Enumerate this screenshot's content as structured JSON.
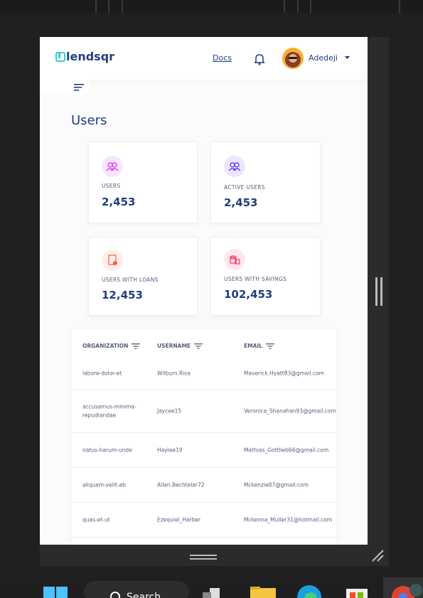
{
  "header": {
    "logo": "lendsqr",
    "docs": "Docs",
    "user": "Adedeji"
  },
  "page_title": "Users",
  "cards": [
    {
      "label": "USERS",
      "value": "2,453"
    },
    {
      "label": "ACTIVE USERS",
      "value": "2,453"
    },
    {
      "label": "USERS WITH LOANS",
      "value": "12,453"
    },
    {
      "label": "USERS WITH SAVINGS",
      "value": "102,453"
    }
  ],
  "table": {
    "columns": [
      "ORGANIZATION",
      "USERNAME",
      "EMAIL"
    ],
    "rows": [
      [
        "labore-dolor-et",
        "Wilburn.Rice",
        "Maverick.Hyatt83@gmail.com"
      ],
      [
        "accusamus-minima-repudiandae",
        "Jaycee15",
        "Veronica_Shanahan93@gmail.com"
      ],
      [
        "natus-harum-unde",
        "Haylee19",
        "Mathias_Gottlieb66@gmail.com"
      ],
      [
        "aliquam-velit-ab",
        "Allan.Bechtelar72",
        "Mckenzie87@gmail.com"
      ],
      [
        "quas-et-ut",
        "Ezequiel_Harber",
        "Mckenna_Muller31@hotmail.com"
      ]
    ]
  },
  "taskbar": {
    "search": "Search"
  }
}
